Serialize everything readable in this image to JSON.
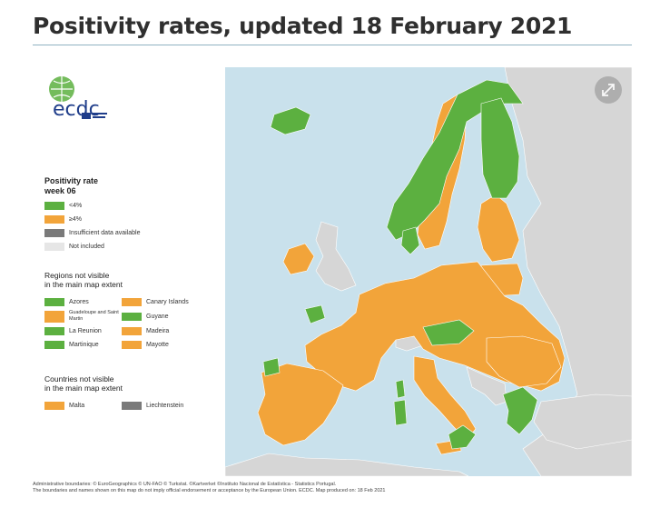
{
  "page": {
    "title": "Positivity rates, updated 18 February 2021"
  },
  "logo": {
    "text": "ecdc",
    "icon": "ecdc-globe-logo"
  },
  "legend": {
    "title_line1": "Positivity rate",
    "title_line2": "week 06",
    "items": [
      {
        "label": "<4%",
        "color": "#5cb040"
      },
      {
        "label": "≥4%",
        "color": "#f2a43a"
      },
      {
        "label": "Insufficient data available",
        "color": "#7a7a7a"
      },
      {
        "label": "Not included",
        "color": "#e6e6e6"
      }
    ]
  },
  "regions": {
    "title_line1": "Regions not visible",
    "title_line2": "in the main map extent",
    "items": [
      {
        "label": "Azores",
        "color": "#5cb040"
      },
      {
        "label": "Canary Islands",
        "color": "#f2a43a"
      },
      {
        "label": "Guadeloupe and Saint Martin",
        "color": "#f2a43a"
      },
      {
        "label": "Guyane",
        "color": "#5cb040"
      },
      {
        "label": "La Reunion",
        "color": "#5cb040"
      },
      {
        "label": "Madeira",
        "color": "#f2a43a"
      },
      {
        "label": "Martinique",
        "color": "#5cb040"
      },
      {
        "label": "Mayotte",
        "color": "#f2a43a"
      }
    ]
  },
  "countries": {
    "title_line1": "Countries not visible",
    "title_line2": "in the main map extent",
    "items": [
      {
        "label": "Malta",
        "color": "#f2a43a"
      },
      {
        "label": "Liechtenstein",
        "color": "#7a7a7a"
      }
    ]
  },
  "map": {
    "colors": {
      "sea": "#c9e1ec",
      "below4": "#5cb040",
      "above4": "#f2a43a",
      "not_included": "#d6d6d6"
    },
    "expand_icon": "expand-arrows-icon"
  },
  "footer": {
    "line1": "Administrative boundaries: © EuroGeographics © UN-FAO © Turkstat. ©Kartverket ©Instituto Nacional de Estatística - Statistics Portugal.",
    "line2": "The boundaries and names shown on this map do not imply official endorsement or acceptance by the European Union. ECDC. Map produced on: 18 Feb 2021"
  }
}
